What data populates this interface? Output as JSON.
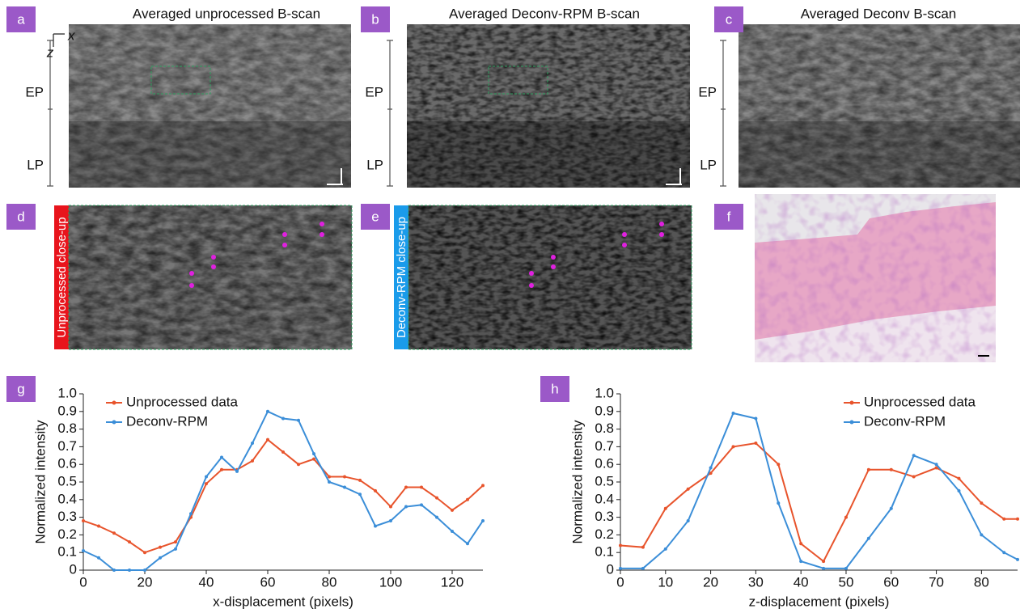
{
  "panels": [
    {
      "label": "a",
      "title": "Averaged unprocessed B-scan"
    },
    {
      "label": "b",
      "title": "Averaged Deconv-RPM B-scan"
    },
    {
      "label": "c",
      "title": "Averaged Deconv B-scan"
    },
    {
      "label": "d",
      "title": "Unprocessed close-up"
    },
    {
      "label": "e",
      "title": "Deconv-RPM close-up"
    },
    {
      "label": "f"
    }
  ],
  "axes_labels": {
    "x": "x",
    "z": "z"
  },
  "layers": {
    "ep": "EP",
    "lp": "LP"
  },
  "chart_data": [
    {
      "type": "line",
      "panel": "g",
      "x_label": "x-displacement (pixels)",
      "y_label": "Normalized intensity",
      "x": [
        0,
        5,
        10,
        15,
        20,
        25,
        30,
        35,
        40,
        45,
        50,
        55,
        60,
        65,
        70,
        75,
        80,
        85,
        90,
        95,
        100,
        105,
        110,
        115,
        120,
        125,
        130
      ],
      "series": [
        {
          "name": "Unprocessed data",
          "color": "#e8542c",
          "values": [
            0.28,
            0.25,
            0.21,
            0.16,
            0.1,
            0.13,
            0.16,
            0.3,
            0.49,
            0.57,
            0.57,
            0.62,
            0.74,
            0.67,
            0.6,
            0.63,
            0.53,
            0.53,
            0.51,
            0.45,
            0.36,
            0.47,
            0.47,
            0.41,
            0.34,
            0.4,
            0.48
          ]
        },
        {
          "name": "Deconv-RPM",
          "color": "#3b8ed8",
          "values": [
            0.11,
            0.07,
            0.0,
            0.0,
            0.0,
            0.07,
            0.12,
            0.32,
            0.53,
            0.64,
            0.56,
            0.72,
            0.9,
            0.86,
            0.85,
            0.66,
            0.5,
            0.47,
            0.43,
            0.25,
            0.28,
            0.36,
            0.37,
            0.3,
            0.22,
            0.15,
            0.28
          ]
        }
      ],
      "xlim": [
        0,
        130
      ],
      "xticks": [
        0,
        20,
        40,
        60,
        80,
        100,
        120
      ],
      "ylim": [
        0,
        1
      ],
      "yticks": [
        0,
        0.1,
        0.2,
        0.3,
        0.4,
        0.5,
        0.6,
        0.7,
        0.8,
        0.9,
        {
          "value": 1,
          "label": "1.0"
        }
      ],
      "legend": "upper left"
    },
    {
      "type": "line",
      "panel": "h",
      "x_label": "z-displacement (pixels)",
      "y_label": "Normalized intensity",
      "x": [
        0,
        5,
        10,
        15,
        20,
        25,
        30,
        35,
        40,
        45,
        50,
        55,
        60,
        65,
        70,
        75,
        80,
        85,
        88
      ],
      "series": [
        {
          "name": "Unprocessed data",
          "color": "#e8542c",
          "values": [
            0.14,
            0.13,
            0.35,
            0.46,
            0.55,
            0.7,
            0.72,
            0.6,
            0.15,
            0.05,
            0.3,
            0.57,
            0.57,
            0.53,
            0.58,
            0.52,
            0.38,
            0.29,
            0.29
          ]
        },
        {
          "name": "Deconv-RPM",
          "color": "#3b8ed8",
          "values": [
            0.01,
            0.01,
            0.12,
            0.28,
            0.58,
            0.89,
            0.86,
            0.38,
            0.05,
            0.01,
            0.01,
            0.18,
            0.35,
            0.65,
            0.6,
            0.45,
            0.2,
            0.1,
            0.06
          ]
        }
      ],
      "xlim": [
        0,
        88
      ],
      "xticks": [
        0,
        10,
        20,
        30,
        40,
        50,
        60,
        70,
        80
      ],
      "ylim": [
        0,
        1
      ],
      "yticks": [
        0,
        0.1,
        0.2,
        0.3,
        0.4,
        0.5,
        0.6,
        0.7,
        0.8,
        0.9,
        {
          "value": 1,
          "label": "1.0"
        }
      ],
      "legend": "upper right"
    }
  ]
}
